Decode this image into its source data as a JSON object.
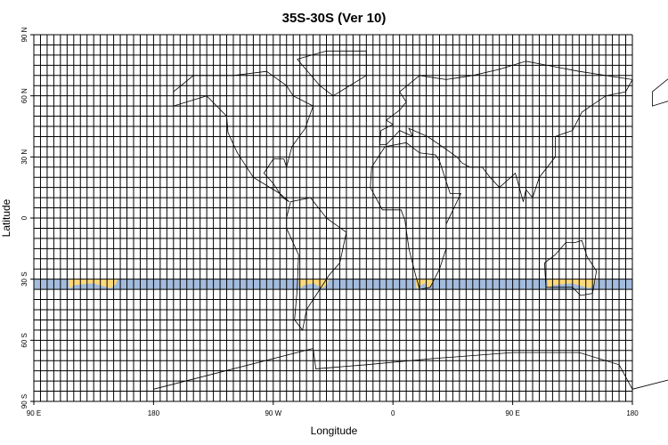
{
  "chart_data": {
    "type": "map",
    "title": "35S-30S (Ver 10)",
    "xlabel": "Longitude",
    "ylabel": "Latitude",
    "x_range_degrees_east": [
      90,
      540
    ],
    "y_range": [
      -90,
      90
    ],
    "x_ticks": [
      {
        "value": 90,
        "label": "90 E"
      },
      {
        "value": 180,
        "label": "180"
      },
      {
        "value": 270,
        "label": "90 W"
      },
      {
        "value": 360,
        "label": "0"
      },
      {
        "value": 450,
        "label": "90 E"
      },
      {
        "value": 540,
        "label": "180"
      }
    ],
    "y_ticks": [
      {
        "value": 90,
        "label": "90 N"
      },
      {
        "value": 60,
        "label": "60 N"
      },
      {
        "value": 30,
        "label": "30 N"
      },
      {
        "value": 0,
        "label": "0"
      },
      {
        "value": -30,
        "label": "30 S"
      },
      {
        "value": -60,
        "label": "60 S"
      },
      {
        "value": -90,
        "label": "90 S"
      }
    ],
    "grid": true,
    "grid_spacing_degrees": 5,
    "highlight_band": {
      "lat_min": -35,
      "lat_max": -30,
      "color": "#a3bbdd"
    },
    "land_in_band_color": "#fdd97a",
    "land_in_band": [
      {
        "region": "Australia",
        "lon": [
          116,
          153
        ]
      },
      {
        "region": "South America",
        "lon": [
          -71,
          -48
        ]
      },
      {
        "region": "Africa",
        "lon": [
          17,
          31
        ]
      },
      {
        "region": "Australia",
        "lon": [
          476,
          513
        ]
      }
    ]
  }
}
